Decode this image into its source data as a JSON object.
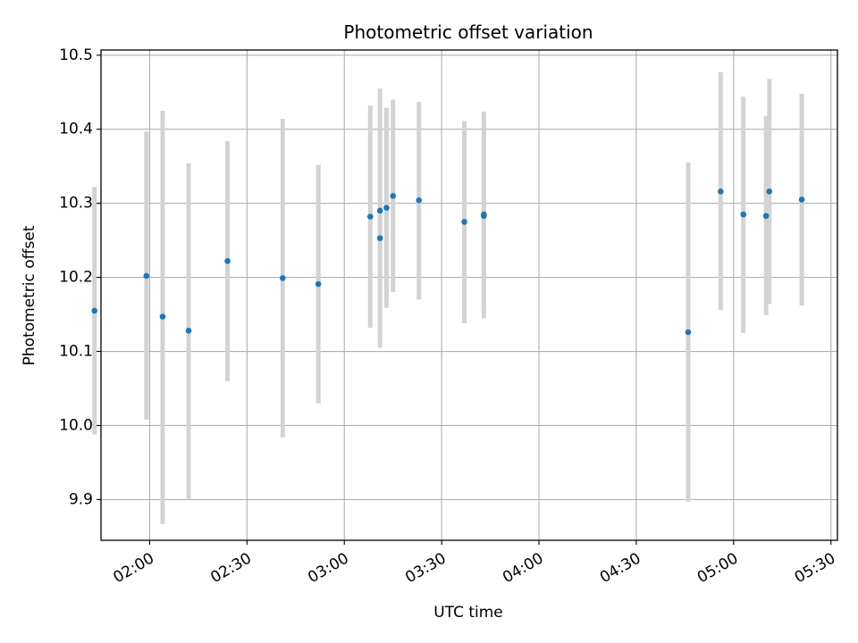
{
  "chart_data": {
    "type": "scatter",
    "title": "Photometric offset variation",
    "xlabel": "UTC time",
    "ylabel": "Photometric offset",
    "x_ticks": [
      "02:00",
      "02:30",
      "03:00",
      "03:30",
      "04:00",
      "04:30",
      "05:00",
      "05:30"
    ],
    "y_ticks": [
      "9.9",
      "10.0",
      "10.1",
      "10.2",
      "10.3",
      "10.4",
      "10.5"
    ],
    "xlim": [
      "01:45",
      "05:32"
    ],
    "ylim": [
      9.845,
      10.507
    ],
    "grid": true,
    "marker_color": "#1f77b4",
    "errorbar_color": "#d3d3d3",
    "series": [
      {
        "points": [
          {
            "x": "01:43",
            "y": 10.155,
            "ylow": 9.988,
            "yhigh": 10.322
          },
          {
            "x": "01:59",
            "y": 10.202,
            "ylow": 10.008,
            "yhigh": 10.397
          },
          {
            "x": "02:04",
            "y": 10.147,
            "ylow": 9.867,
            "yhigh": 10.425
          },
          {
            "x": "02:12",
            "y": 10.128,
            "ylow": 9.901,
            "yhigh": 10.354
          },
          {
            "x": "02:24",
            "y": 10.222,
            "ylow": 10.06,
            "yhigh": 10.384
          },
          {
            "x": "02:41",
            "y": 10.199,
            "ylow": 9.984,
            "yhigh": 10.414
          },
          {
            "x": "02:52",
            "y": 10.191,
            "ylow": 10.03,
            "yhigh": 10.352
          },
          {
            "x": "03:08",
            "y": 10.282,
            "ylow": 10.132,
            "yhigh": 10.432
          },
          {
            "x": "03:11",
            "y": 10.29,
            "ylow": 10.125,
            "yhigh": 10.455
          },
          {
            "x": "03:11",
            "y": 10.253,
            "ylow": 10.105,
            "yhigh": 10.401
          },
          {
            "x": "03:13",
            "y": 10.294,
            "ylow": 10.159,
            "yhigh": 10.429
          },
          {
            "x": "03:15",
            "y": 10.31,
            "ylow": 10.18,
            "yhigh": 10.44
          },
          {
            "x": "03:23",
            "y": 10.304,
            "ylow": 10.17,
            "yhigh": 10.437
          },
          {
            "x": "03:37",
            "y": 10.275,
            "ylow": 10.138,
            "yhigh": 10.411
          },
          {
            "x": "03:43",
            "y": 10.283,
            "ylow": 10.155,
            "yhigh": 10.411
          },
          {
            "x": "03:43",
            "y": 10.285,
            "ylow": 10.145,
            "yhigh": 10.424
          },
          {
            "x": "04:46",
            "y": 10.126,
            "ylow": 9.897,
            "yhigh": 10.355
          },
          {
            "x": "04:56",
            "y": 10.316,
            "ylow": 10.156,
            "yhigh": 10.477
          },
          {
            "x": "05:03",
            "y": 10.285,
            "ylow": 10.125,
            "yhigh": 10.444
          },
          {
            "x": "05:10",
            "y": 10.283,
            "ylow": 10.149,
            "yhigh": 10.418
          },
          {
            "x": "05:11",
            "y": 10.316,
            "ylow": 10.164,
            "yhigh": 10.468
          },
          {
            "x": "05:21",
            "y": 10.305,
            "ylow": 10.162,
            "yhigh": 10.448
          }
        ]
      }
    ]
  }
}
